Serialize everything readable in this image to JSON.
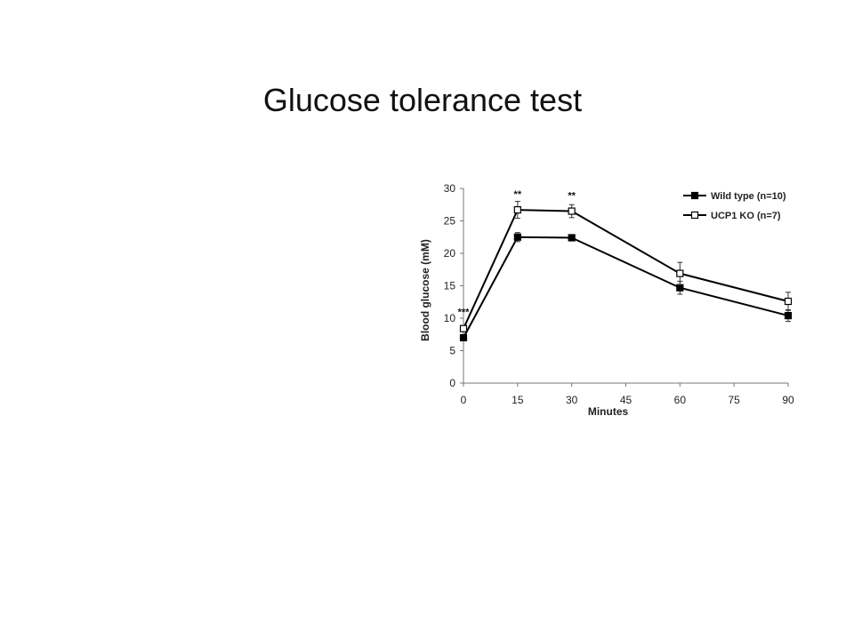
{
  "slide": {
    "title": "Glucose tolerance test"
  },
  "chart_data": {
    "type": "line",
    "title": "",
    "xlabel": "Minutes",
    "ylabel": "Blood glucose (mM)",
    "xlim": [
      0,
      90
    ],
    "ylim": [
      0,
      30
    ],
    "x_ticks": [
      0,
      15,
      30,
      45,
      60,
      75,
      90
    ],
    "y_ticks": [
      0,
      5,
      10,
      15,
      20,
      25,
      30
    ],
    "grid": false,
    "legend_position": "top-right",
    "x": [
      0,
      15,
      30,
      60,
      90
    ],
    "series": [
      {
        "name": "Wild type (n=10)",
        "marker": "filled-square",
        "color": "#000000",
        "values": [
          7.0,
          22.5,
          22.4,
          14.7,
          10.4
        ],
        "errors": [
          0.3,
          0.7,
          0.4,
          1.0,
          0.9
        ]
      },
      {
        "name": "UCP1 KO (n=7)",
        "marker": "open-square",
        "color": "#000000",
        "values": [
          8.4,
          26.7,
          26.5,
          16.9,
          12.6
        ],
        "errors": [
          0.4,
          1.3,
          1.0,
          1.7,
          1.4
        ]
      }
    ],
    "annotations": [
      {
        "text": "***",
        "x": 0,
        "y": 11.0
      },
      {
        "text": "**",
        "x": 15,
        "y": 29.2
      },
      {
        "text": "**",
        "x": 30,
        "y": 29.0
      }
    ]
  }
}
